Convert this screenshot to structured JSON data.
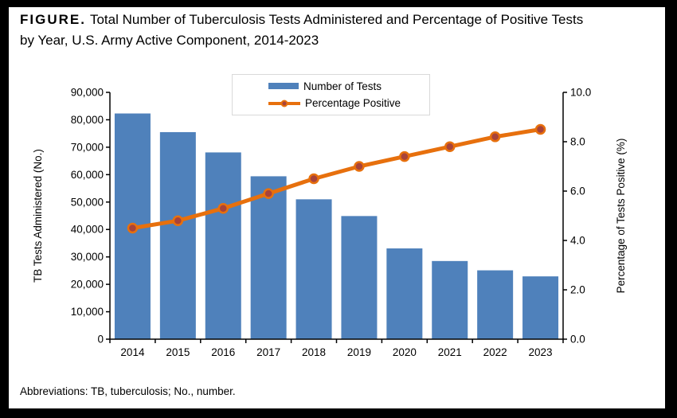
{
  "header": {
    "figure_label": "FIGURE.",
    "title_line1": "Total Number of Tuberculosis Tests Administered and Percentage of Positive Tests",
    "title_line2": "by Year, U.S. Army Active Component, 2014-2023"
  },
  "legend": {
    "bar_label": "Number of Tests",
    "line_label": "Percentage Positive"
  },
  "footer": {
    "abbreviations": "Abbreviations: TB, tuberculosis; No., number."
  },
  "colors": {
    "bar": "#4f81bb",
    "line": "#e7700d",
    "marker": "#a8433a",
    "axis": "#000000",
    "frame": "#000000",
    "legend_border": "#d9d9d9"
  },
  "chart_data": {
    "type": "bar",
    "title": "FIGURE. Total Number of Tuberculosis Tests Administered and Percentage of Positive Tests by Year, U.S. Army Active Component, 2014-2023",
    "categories": [
      "2014",
      "2015",
      "2016",
      "2017",
      "2018",
      "2019",
      "2020",
      "2021",
      "2022",
      "2023"
    ],
    "series": [
      {
        "name": "Number of Tests",
        "type": "bar",
        "axis": "left",
        "values": [
          82300,
          75500,
          68100,
          59400,
          51000,
          44900,
          33100,
          28500,
          25100,
          22900
        ]
      },
      {
        "name": "Percentage Positive",
        "type": "line",
        "axis": "right",
        "values": [
          4.5,
          4.8,
          5.3,
          5.9,
          6.5,
          7.0,
          7.4,
          7.8,
          8.2,
          8.5
        ]
      }
    ],
    "xlabel": "",
    "ylabel_left": "TB Tests Administered (No.)",
    "ylabel_right": "Percentage of Tests Positive (%)",
    "ylim_left": [
      0,
      90000
    ],
    "ylim_right": [
      0,
      10
    ],
    "ytick_labels_left": [
      "0",
      "10,000",
      "20,000",
      "30,000",
      "40,000",
      "50,000",
      "60,000",
      "70,000",
      "80,000",
      "90,000"
    ],
    "ytick_labels_right": [
      "0.0",
      "2.0",
      "4.0",
      "6.0",
      "8.0",
      "10.0"
    ],
    "grid": false,
    "legend_position": "top-center"
  }
}
